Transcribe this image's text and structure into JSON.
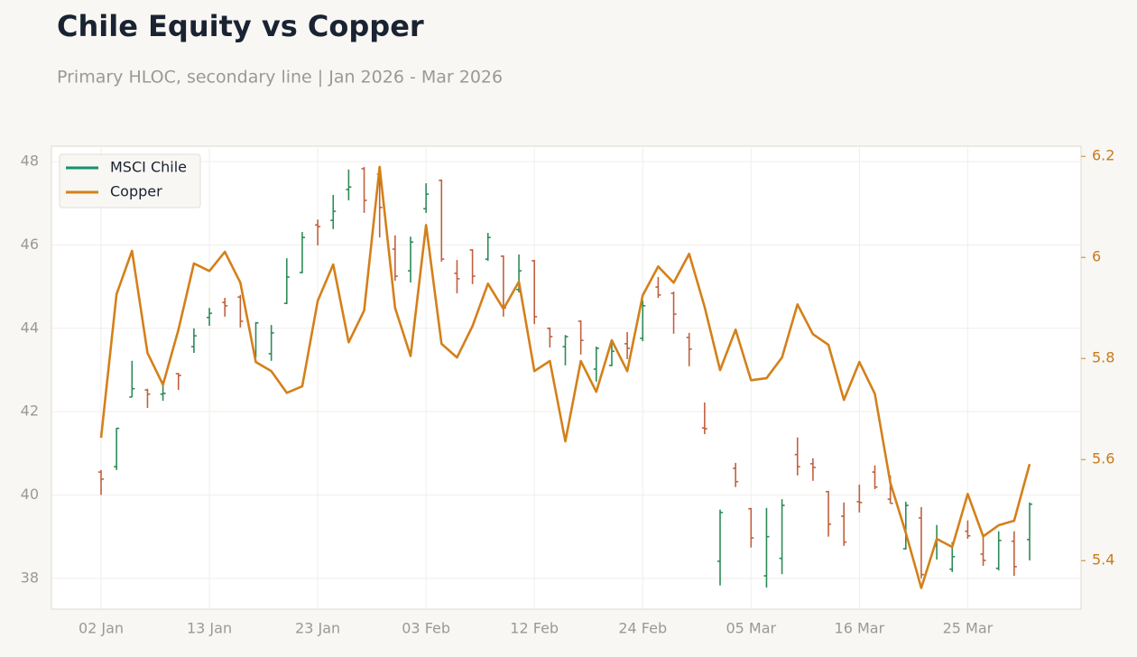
{
  "chart_data": {
    "type": "ohlc_line",
    "title": "Chile Equity vs Copper",
    "subtitle": "Primary HLOC, secondary line | Jan 2026 - Mar 2026",
    "categories": [
      "02 Jan",
      null,
      null,
      null,
      null,
      null,
      null,
      "13 Jan",
      null,
      null,
      null,
      null,
      null,
      null,
      "23 Jan",
      null,
      null,
      null,
      null,
      null,
      null,
      "03 Feb",
      null,
      null,
      null,
      null,
      null,
      null,
      "12 Feb",
      null,
      null,
      null,
      null,
      null,
      null,
      "24 Feb",
      null,
      null,
      null,
      null,
      null,
      null,
      "05 Mar",
      null,
      null,
      null,
      null,
      null,
      null,
      "16 Mar",
      null,
      null,
      null,
      null,
      null,
      null,
      "25 Mar",
      null,
      null,
      null,
      null
    ],
    "series": [
      {
        "name": "MSCI Chile",
        "type": "ohlc",
        "color": "#11936b",
        "up_color": "#2e8b57",
        "down_color": "#c0603e",
        "open": [
          40.55,
          40.68,
          42.35,
          42.52,
          42.42,
          42.91,
          43.56,
          44.26,
          44.62,
          44.75,
          43.39,
          43.39,
          44.6,
          45.34,
          46.48,
          46.59,
          47.33,
          47.83,
          47.7,
          45.9,
          45.38,
          46.87,
          47.55,
          45.32,
          45.88,
          45.66,
          45.73,
          44.93,
          45.62,
          44.0,
          43.56,
          44.17,
          43.02,
          43.11,
          43.63,
          43.76,
          44.99,
          44.84,
          43.78,
          41.61,
          38.41,
          40.64,
          39.67,
          38.06,
          38.48,
          40.97,
          40.75,
          40.08,
          39.49,
          39.84,
          40.55,
          39.9,
          38.71,
          39.45,
          38.78,
          38.22,
          39.13,
          38.58,
          38.24,
          38.89,
          38.93
        ],
        "high": [
          40.6,
          41.61,
          43.22,
          42.55,
          42.74,
          42.93,
          44.0,
          44.49,
          44.73,
          44.8,
          44.15,
          44.08,
          45.68,
          46.31,
          46.61,
          47.2,
          47.81,
          47.87,
          47.87,
          46.23,
          46.2,
          47.48,
          47.57,
          45.64,
          45.9,
          46.29,
          45.75,
          45.77,
          45.64,
          44.02,
          43.84,
          44.19,
          43.56,
          43.69,
          43.91,
          44.67,
          45.23,
          44.88,
          43.89,
          42.22,
          39.65,
          40.77,
          39.69,
          39.69,
          39.9,
          41.38,
          40.88,
          40.1,
          39.82,
          40.25,
          40.71,
          40.47,
          39.84,
          39.71,
          39.28,
          38.87,
          39.39,
          39.06,
          39.13,
          39.13,
          39.82
        ],
        "low": [
          40.0,
          40.6,
          42.35,
          42.09,
          42.26,
          42.52,
          43.41,
          44.06,
          44.28,
          44.02,
          43.3,
          43.22,
          44.58,
          45.32,
          45.99,
          46.38,
          47.07,
          46.77,
          46.18,
          45.14,
          45.1,
          46.77,
          45.6,
          44.84,
          45.06,
          45.62,
          44.28,
          44.86,
          44.1,
          43.54,
          43.11,
          43.37,
          42.72,
          43.09,
          43.26,
          43.69,
          44.73,
          43.87,
          43.09,
          41.46,
          37.83,
          40.19,
          38.74,
          37.78,
          38.1,
          40.47,
          40.34,
          39.0,
          38.78,
          39.58,
          40.14,
          39.8,
          38.69,
          38.0,
          38.45,
          38.15,
          38.95,
          38.3,
          38.19,
          38.06,
          38.43
        ],
        "close": [
          40.38,
          41.6,
          42.55,
          42.42,
          42.44,
          42.87,
          43.82,
          44.36,
          44.54,
          44.17,
          44.13,
          43.89,
          45.23,
          46.18,
          46.44,
          46.81,
          47.39,
          47.07,
          46.9,
          45.25,
          46.07,
          47.22,
          45.66,
          45.19,
          45.25,
          46.18,
          44.49,
          45.38,
          44.28,
          43.8,
          43.8,
          43.71,
          43.52,
          43.45,
          43.52,
          44.54,
          44.8,
          44.34,
          43.5,
          41.59,
          39.58,
          40.32,
          38.97,
          39.0,
          39.75,
          40.68,
          40.66,
          39.3,
          38.87,
          39.82,
          40.19,
          39.8,
          39.75,
          38.09,
          38.93,
          38.52,
          39.02,
          38.43,
          38.91,
          38.28,
          39.78
        ]
      },
      {
        "name": "Copper",
        "type": "line",
        "axis": "y2",
        "color": "#d4801a",
        "values": [
          5.643,
          5.927,
          6.013,
          5.811,
          5.748,
          5.857,
          5.988,
          5.973,
          6.011,
          5.95,
          5.793,
          5.775,
          5.732,
          5.745,
          5.914,
          5.986,
          5.832,
          5.895,
          6.179,
          5.9,
          5.805,
          6.064,
          5.829,
          5.802,
          5.864,
          5.948,
          5.898,
          5.952,
          5.775,
          5.795,
          5.636,
          5.795,
          5.734,
          5.836,
          5.775,
          5.925,
          5.982,
          5.95,
          6.007,
          5.902,
          5.777,
          5.857,
          5.757,
          5.761,
          5.802,
          5.907,
          5.848,
          5.827,
          5.718,
          5.793,
          5.73,
          5.554,
          5.455,
          5.346,
          5.443,
          5.427,
          5.532,
          5.448,
          5.47,
          5.479,
          5.591
        ]
      }
    ],
    "ylim": [
      37.26,
      48.37
    ],
    "yticks": [
      38,
      40,
      42,
      44,
      46,
      48
    ],
    "y2lim": [
      5.304,
      6.22
    ],
    "y2ticks": [
      5.4,
      5.6,
      5.8,
      6,
      6.2
    ],
    "grid": true,
    "legend": "upper left"
  }
}
